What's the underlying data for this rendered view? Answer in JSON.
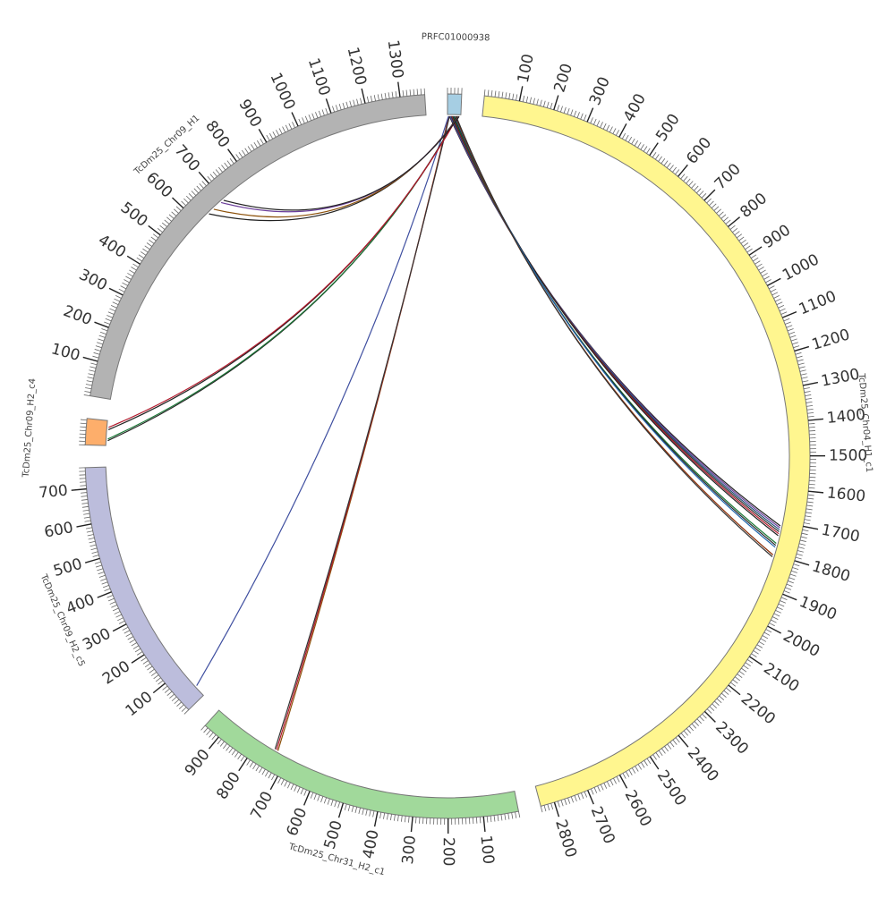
{
  "diagram": {
    "type": "circos",
    "sequences": [
      {
        "name": "PRFC01000938",
        "length": 40,
        "color": "#a6cee3",
        "ticks": []
      },
      {
        "name": "TcDm25_Chr04_H1_c1",
        "length": 2840,
        "color": "#fff68f",
        "ticks": [
          "100",
          "200",
          "300",
          "400",
          "500",
          "600",
          "700",
          "800",
          "900",
          "1000",
          "1100",
          "1200",
          "1300",
          "1400",
          "1500",
          "1600",
          "1700",
          "1800",
          "1900",
          "2000",
          "2100",
          "2200",
          "2300",
          "2400",
          "2500",
          "2600",
          "2700",
          "2800"
        ]
      },
      {
        "name": "TcDm25_Chr31_H2_c1",
        "length": 950,
        "color": "#a1d99b",
        "ticks": [
          "100",
          "200",
          "300",
          "400",
          "500",
          "600",
          "700",
          "800",
          "900"
        ]
      },
      {
        "name": "TcDm25_Chr09_H2_c5",
        "length": 760,
        "color": "#bcbddc",
        "ticks": [
          "100",
          "200",
          "300",
          "400",
          "500",
          "600",
          "700"
        ]
      },
      {
        "name": "TcDm25_Chr09_H2_c4",
        "length": 75,
        "color": "#fdae6b",
        "ticks": []
      },
      {
        "name": "TcDm25_Chr09_H1",
        "length": 1370,
        "color": "#b3b3b3",
        "ticks": [
          "100",
          "200",
          "300",
          "400",
          "500",
          "600",
          "700",
          "800",
          "900",
          "1000",
          "1100",
          "1200",
          "1300"
        ]
      }
    ],
    "links": [
      {
        "from": "PRFC01000938",
        "from_pos": 6,
        "to": "TcDm25_Chr04_H1_c1",
        "to_pos": 1712,
        "color": "#222222"
      },
      {
        "from": "PRFC01000938",
        "from_pos": 8,
        "to": "TcDm25_Chr04_H1_c1",
        "to_pos": 1718,
        "color": "#6a3d9a"
      },
      {
        "from": "PRFC01000938",
        "from_pos": 10,
        "to": "TcDm25_Chr04_H1_c1",
        "to_pos": 1724,
        "color": "#1f4e79"
      },
      {
        "from": "PRFC01000938",
        "from_pos": 12,
        "to": "TcDm25_Chr04_H1_c1",
        "to_pos": 1730,
        "color": "#333333"
      },
      {
        "from": "PRFC01000938",
        "from_pos": 14,
        "to": "TcDm25_Chr04_H1_c1",
        "to_pos": 1736,
        "color": "#b2182b"
      },
      {
        "from": "PRFC01000938",
        "from_pos": 16,
        "to": "TcDm25_Chr04_H1_c1",
        "to_pos": 1742,
        "color": "#222222"
      },
      {
        "from": "PRFC01000938",
        "from_pos": 18,
        "to": "TcDm25_Chr04_H1_c1",
        "to_pos": 1766,
        "color": "#1b7837"
      },
      {
        "from": "PRFC01000938",
        "from_pos": 20,
        "to": "TcDm25_Chr04_H1_c1",
        "to_pos": 1772,
        "color": "#222222"
      },
      {
        "from": "PRFC01000938",
        "from_pos": 22,
        "to": "TcDm25_Chr04_H1_c1",
        "to_pos": 1778,
        "color": "#2166ac"
      },
      {
        "from": "PRFC01000938",
        "from_pos": 24,
        "to": "TcDm25_Chr04_H1_c1",
        "to_pos": 1802,
        "color": "#8c2d04"
      },
      {
        "from": "PRFC01000938",
        "from_pos": 26,
        "to": "TcDm25_Chr04_H1_c1",
        "to_pos": 1808,
        "color": "#333333"
      },
      {
        "from": "PRFC01000938",
        "from_pos": 4,
        "to": "TcDm25_Chr31_H2_c1",
        "to_pos": 735,
        "color": "#8c510a"
      },
      {
        "from": "PRFC01000938",
        "from_pos": 5,
        "to": "TcDm25_Chr31_H2_c1",
        "to_pos": 740,
        "color": "#b2182b"
      },
      {
        "from": "PRFC01000938",
        "from_pos": 6,
        "to": "TcDm25_Chr31_H2_c1",
        "to_pos": 745,
        "color": "#333333"
      },
      {
        "from": "PRFC01000938",
        "from_pos": 3,
        "to": "TcDm25_Chr09_H2_c5",
        "to_pos": 35,
        "color": "#3f4fa0"
      },
      {
        "from": "PRFC01000938",
        "from_pos": 28,
        "to": "TcDm25_Chr09_H2_c4",
        "to_pos": 15,
        "color": "#222222"
      },
      {
        "from": "PRFC01000938",
        "from_pos": 29,
        "to": "TcDm25_Chr09_H2_c4",
        "to_pos": 20,
        "color": "#1b7837"
      },
      {
        "from": "PRFC01000938",
        "from_pos": 30,
        "to": "TcDm25_Chr09_H2_c4",
        "to_pos": 48,
        "color": "#222222"
      },
      {
        "from": "PRFC01000938",
        "from_pos": 31,
        "to": "TcDm25_Chr09_H2_c4",
        "to_pos": 55,
        "color": "#b2182b"
      },
      {
        "from": "PRFC01000938",
        "from_pos": 32,
        "to": "TcDm25_Chr09_H1",
        "to_pos": 640,
        "color": "#222222"
      },
      {
        "from": "PRFC01000938",
        "from_pos": 33,
        "to": "TcDm25_Chr09_H1",
        "to_pos": 660,
        "color": "#8c510a"
      },
      {
        "from": "PRFC01000938",
        "from_pos": 34,
        "to": "TcDm25_Chr09_H1",
        "to_pos": 690,
        "color": "#6a3d9a"
      },
      {
        "from": "PRFC01000938",
        "from_pos": 35,
        "to": "TcDm25_Chr09_H1",
        "to_pos": 700,
        "color": "#222222"
      }
    ]
  }
}
